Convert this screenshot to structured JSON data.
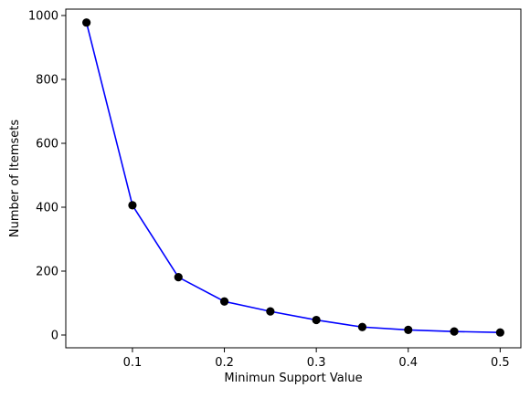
{
  "chart_data": {
    "type": "line",
    "title": "",
    "xlabel": "Minimun Support Value",
    "ylabel": "Number of Itemsets",
    "x": [
      0.05,
      0.1,
      0.15,
      0.2,
      0.25,
      0.3,
      0.35,
      0.4,
      0.45,
      0.5
    ],
    "series": [
      {
        "values": [
          978,
          406,
          181,
          105,
          74,
          47,
          25,
          16,
          11,
          8
        ]
      }
    ],
    "xlim": [
      0.0275,
      0.5225
    ],
    "ylim": [
      -40,
      1020
    ],
    "xticks": [
      0.1,
      0.2,
      0.3,
      0.4,
      0.5
    ],
    "xtick_labels": [
      "0.1",
      "0.2",
      "0.3",
      "0.4",
      "0.5"
    ],
    "yticks": [
      0,
      200,
      400,
      600,
      800,
      1000
    ],
    "ytick_labels": [
      "0",
      "200",
      "400",
      "600",
      "800",
      "1000"
    ],
    "grid": false,
    "legend": false,
    "colors": {
      "line": "#0000ff",
      "marker": "#000000",
      "axes": "#000000",
      "background": "#ffffff"
    }
  }
}
